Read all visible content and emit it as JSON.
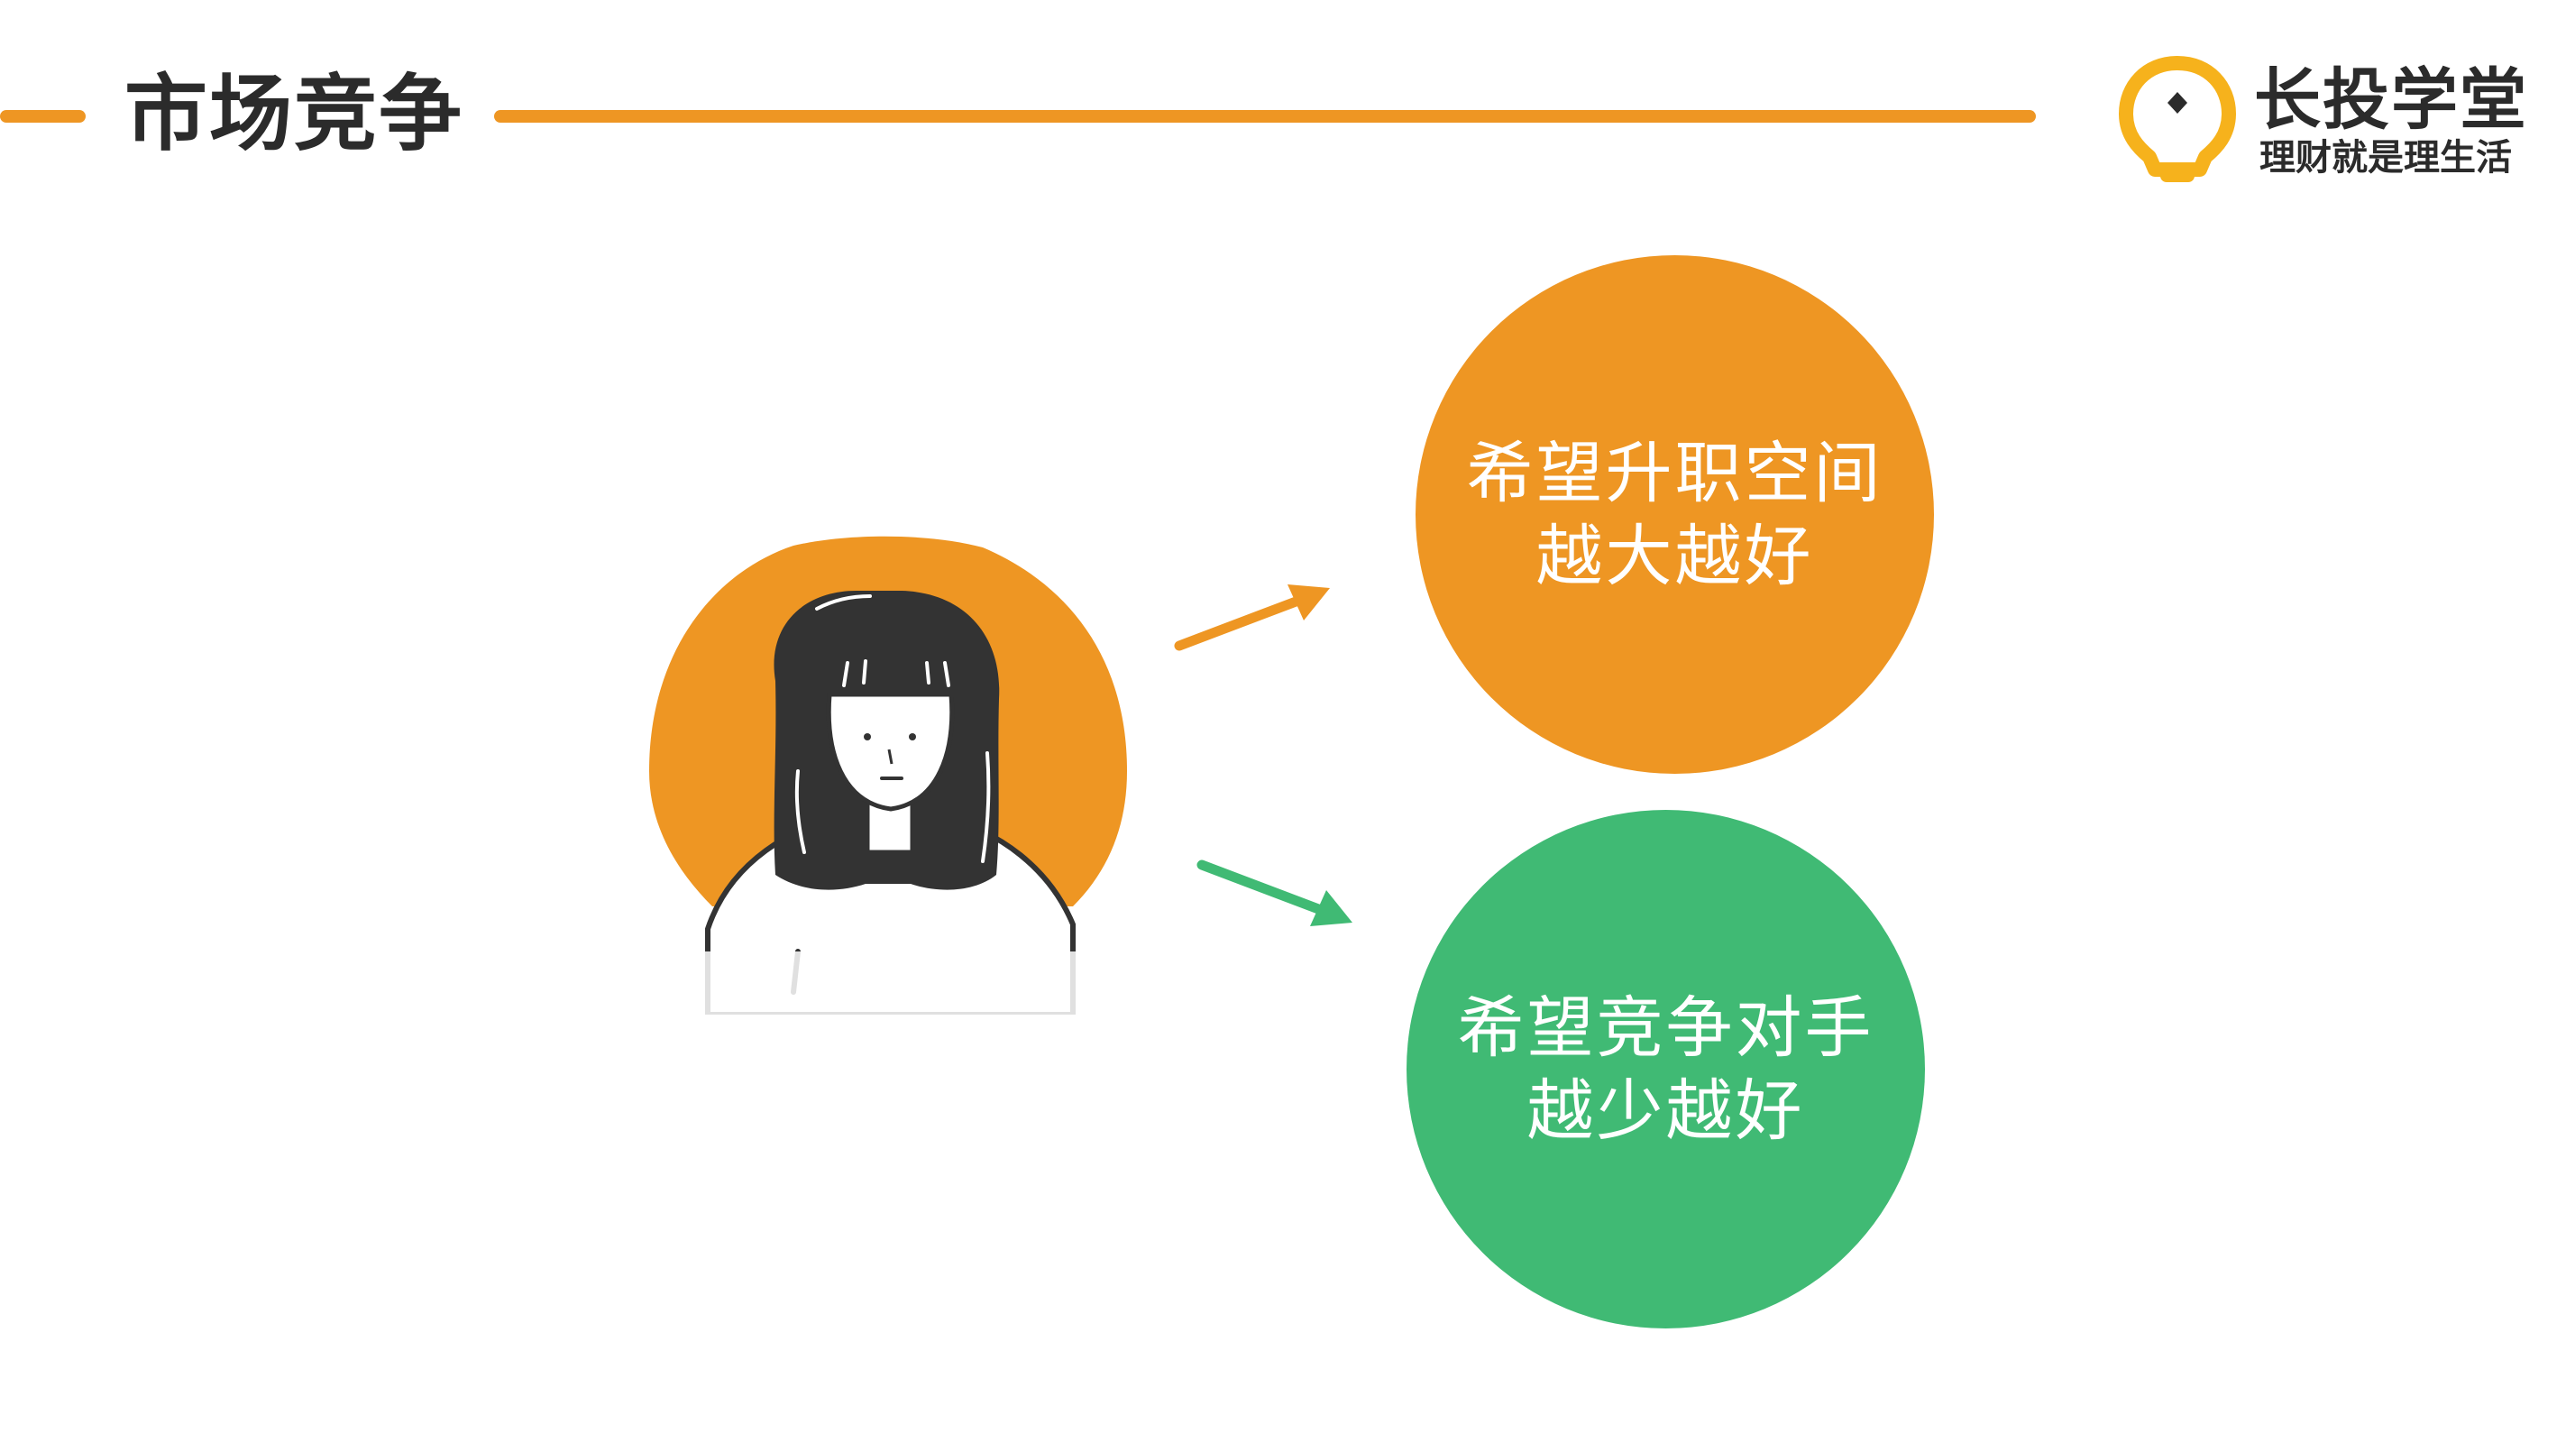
{
  "header": {
    "title": "市场竞争"
  },
  "logo": {
    "name": "长投学堂",
    "slogan": "理财就是理生活",
    "icon": "lightbulb-icon"
  },
  "colors": {
    "accent_orange": "#EE9623",
    "accent_green": "#40BA74",
    "text_dark": "#2b2b2b"
  },
  "illustration": {
    "icon": "girl-avatar-illustration"
  },
  "bubbles": [
    {
      "line1": "希望升职空间",
      "line2": "越大越好",
      "color": "#EE9623"
    },
    {
      "line1": "希望竞争对手",
      "line2": "越少越好",
      "color": "#40BA74"
    }
  ]
}
